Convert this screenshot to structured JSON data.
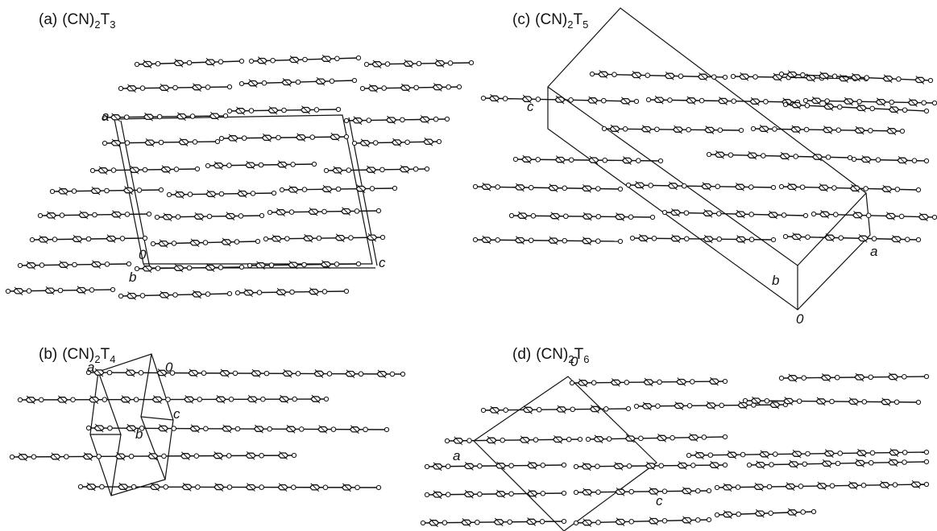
{
  "panels": [
    {
      "title": {
        "letter": "(a)",
        "formula": "(CN)",
        "n1": "2",
        "t": "T",
        "n2": "3"
      },
      "axes": [
        "a",
        "0",
        "c",
        "b"
      ]
    },
    {
      "title": {
        "letter": "(b)",
        "formula": "(CN)",
        "n1": "2",
        "t": "T",
        "n2": "4"
      },
      "axes": [
        "a",
        "0",
        "c",
        "b"
      ]
    },
    {
      "title": {
        "letter": "(c)",
        "formula": "(CN)",
        "n1": "2",
        "t": "T",
        "n2": "5"
      },
      "axes": [
        "c",
        "a",
        "b",
        "0"
      ]
    },
    {
      "title": {
        "letter": "(d)",
        "formula": "(CN)",
        "n1": "2",
        "t": "T",
        "n2": "6"
      },
      "axes": [
        "0",
        "a",
        "c"
      ]
    }
  ]
}
